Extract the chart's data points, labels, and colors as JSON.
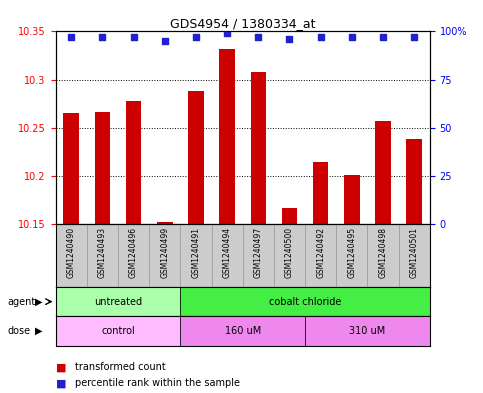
{
  "title": "GDS4954 / 1380334_at",
  "samples": [
    "GSM1240490",
    "GSM1240493",
    "GSM1240496",
    "GSM1240499",
    "GSM1240491",
    "GSM1240494",
    "GSM1240497",
    "GSM1240500",
    "GSM1240492",
    "GSM1240495",
    "GSM1240498",
    "GSM1240501"
  ],
  "bar_values": [
    10.265,
    10.266,
    10.278,
    10.152,
    10.288,
    10.332,
    10.308,
    10.167,
    10.214,
    10.201,
    10.257,
    10.238
  ],
  "percentile_values": [
    97,
    97,
    97,
    95,
    97,
    99,
    97,
    96,
    97,
    97,
    97,
    97
  ],
  "bar_color": "#cc0000",
  "percentile_color": "#2222cc",
  "ylim_left": [
    10.15,
    10.35
  ],
  "ylim_right": [
    0,
    100
  ],
  "yticks_left": [
    10.15,
    10.2,
    10.25,
    10.3,
    10.35
  ],
  "yticks_right": [
    0,
    25,
    50,
    75,
    100
  ],
  "ytick_labels_right": [
    "0",
    "25",
    "50",
    "75",
    "100%"
  ],
  "agent_groups": [
    {
      "label": "untreated",
      "color": "#aaffaa",
      "start": 0,
      "end": 4
    },
    {
      "label": "cobalt chloride",
      "color": "#44ee44",
      "start": 4,
      "end": 12
    }
  ],
  "dose_groups": [
    {
      "label": "control",
      "color": "#ffbbff",
      "start": 0,
      "end": 4
    },
    {
      "label": "160 uM",
      "color": "#ee88ee",
      "start": 4,
      "end": 8
    },
    {
      "label": "310 uM",
      "color": "#ee88ee",
      "start": 8,
      "end": 12
    }
  ],
  "legend_transformed": "transformed count",
  "legend_percentile": "percentile rank within the sample",
  "bar_width": 0.5,
  "base_value": 10.15,
  "sample_box_color": "#cccccc",
  "sample_box_edge": "#999999"
}
